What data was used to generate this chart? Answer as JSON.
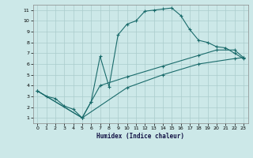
{
  "title": "",
  "xlabel": "Humidex (Indice chaleur)",
  "xlim": [
    -0.5,
    23.5
  ],
  "ylim": [
    0.5,
    11.5
  ],
  "xticks": [
    0,
    1,
    2,
    3,
    4,
    5,
    6,
    7,
    8,
    9,
    10,
    11,
    12,
    13,
    14,
    15,
    16,
    17,
    18,
    19,
    20,
    21,
    22,
    23
  ],
  "yticks": [
    1,
    2,
    3,
    4,
    5,
    6,
    7,
    8,
    9,
    10,
    11
  ],
  "bg_color": "#cce8e8",
  "grid_color": "#aacccc",
  "line_color": "#1a6b6b",
  "line1_x": [
    0,
    1,
    2,
    3,
    4,
    5,
    6,
    7,
    8,
    9,
    10,
    11,
    12,
    13,
    14,
    15,
    16,
    17,
    18,
    19,
    20,
    21,
    22,
    23
  ],
  "line1_y": [
    3.5,
    3.0,
    2.8,
    2.1,
    1.8,
    1.0,
    2.5,
    6.7,
    3.9,
    8.7,
    9.7,
    10.0,
    10.9,
    11.0,
    11.1,
    11.2,
    10.5,
    9.2,
    8.2,
    8.0,
    7.6,
    7.5,
    7.0,
    6.5
  ],
  "line2_x": [
    0,
    5,
    6,
    7,
    10,
    14,
    18,
    20,
    22,
    23
  ],
  "line2_y": [
    3.5,
    1.0,
    2.5,
    4.0,
    4.8,
    5.8,
    6.8,
    7.3,
    7.3,
    6.6
  ],
  "line3_x": [
    0,
    5,
    10,
    14,
    18,
    22,
    23
  ],
  "line3_y": [
    3.5,
    1.0,
    3.8,
    5.0,
    6.0,
    6.5,
    6.6
  ]
}
